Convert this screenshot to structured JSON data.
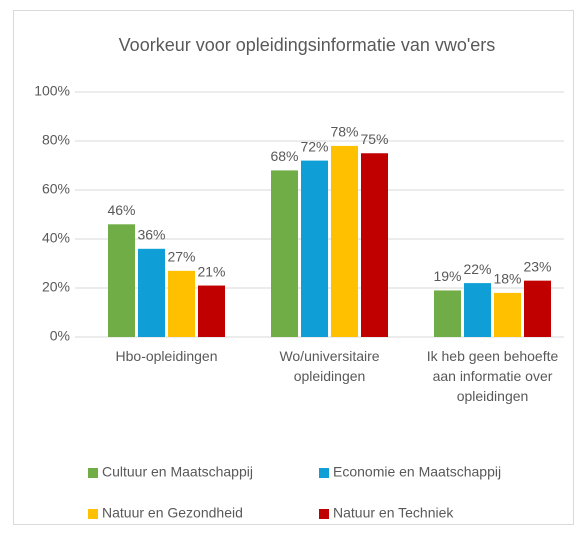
{
  "chart_data": {
    "type": "bar",
    "title": "Voorkeur voor opleidingsinformatie van vwo'ers",
    "categories": [
      "Hbo-opleidingen",
      "Wo/universitaire opleidingen",
      "Ik heb geen behoefte aan informatie over opleidingen"
    ],
    "series": [
      {
        "name": "Cultuur en Maatschappij",
        "color": "#70ad47",
        "values": [
          46,
          68,
          19
        ],
        "value_labels": [
          "46%",
          "68%",
          "19%"
        ]
      },
      {
        "name": "Economie en Maatschappij",
        "color": "#0f9ed5",
        "values": [
          36,
          72,
          22
        ],
        "value_labels": [
          "36%",
          "72%",
          "22%"
        ]
      },
      {
        "name": "Natuur en Gezondheid",
        "color": "#ffc000",
        "values": [
          27,
          78,
          18
        ],
        "value_labels": [
          "27%",
          "78%",
          "18%"
        ]
      },
      {
        "name": "Natuur en Techniek",
        "color": "#c00000",
        "values": [
          21,
          75,
          23
        ],
        "value_labels": [
          "21%",
          "75%",
          "23%"
        ]
      }
    ],
    "ylim": [
      0,
      100
    ],
    "yticks": [
      {
        "value": 0,
        "label": "0%"
      },
      {
        "value": 20,
        "label": "20%"
      },
      {
        "value": 40,
        "label": "40%"
      },
      {
        "value": 60,
        "label": "60%"
      },
      {
        "value": 80,
        "label": "80%"
      },
      {
        "value": 100,
        "label": "100%"
      }
    ],
    "grid": true,
    "legend": "bottom"
  }
}
